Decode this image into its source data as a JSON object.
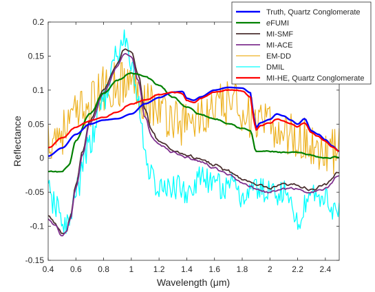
{
  "chart_data": {
    "type": "line",
    "title": "",
    "xlabel": "Wavelength (μm)",
    "ylabel": "Reflectance",
    "xlim": [
      0.4,
      2.5
    ],
    "ylim": [
      -0.15,
      0.2
    ],
    "xticks": [
      0.4,
      0.6,
      0.8,
      1,
      1.2,
      1.4,
      1.6,
      1.8,
      2,
      2.2,
      2.4
    ],
    "xtick_labels": [
      "0.4",
      "0.6",
      "0.8",
      "1",
      "1.2",
      "1.4",
      "1.6",
      "1.8",
      "2",
      "2.2",
      "2.4"
    ],
    "yticks": [
      -0.15,
      -0.1,
      -0.05,
      0,
      0.05,
      0.1,
      0.15,
      0.2
    ],
    "ytick_labels": [
      "-0.15",
      "-0.1",
      "-0.05",
      "0",
      "0.05",
      "0.1",
      "0.15",
      "0.2"
    ],
    "grid": false,
    "legend_position": "top-right",
    "series": [
      {
        "name": "Truth, Quartz Conglomerate",
        "color": "#0000ff",
        "width": 2.4,
        "noise": 0,
        "points": [
          [
            0.4,
            0.003
          ],
          [
            0.5,
            0.015
          ],
          [
            0.6,
            0.035
          ],
          [
            0.7,
            0.05
          ],
          [
            0.8,
            0.056
          ],
          [
            0.9,
            0.058
          ],
          [
            1.0,
            0.065
          ],
          [
            1.1,
            0.08
          ],
          [
            1.2,
            0.089
          ],
          [
            1.3,
            0.097
          ],
          [
            1.37,
            0.098
          ],
          [
            1.4,
            0.088
          ],
          [
            1.45,
            0.085
          ],
          [
            1.5,
            0.09
          ],
          [
            1.6,
            0.1
          ],
          [
            1.7,
            0.104
          ],
          [
            1.8,
            0.103
          ],
          [
            1.86,
            0.096
          ],
          [
            1.88,
            0.065
          ],
          [
            1.9,
            0.045
          ],
          [
            1.93,
            0.052
          ],
          [
            2.0,
            0.057
          ],
          [
            2.05,
            0.065
          ],
          [
            2.1,
            0.062
          ],
          [
            2.15,
            0.056
          ],
          [
            2.2,
            0.05
          ],
          [
            2.25,
            0.058
          ],
          [
            2.3,
            0.04
          ],
          [
            2.35,
            0.035
          ],
          [
            2.4,
            0.027
          ],
          [
            2.45,
            0.018
          ],
          [
            2.5,
            0.01
          ]
        ]
      },
      {
        "name": "eFUMI",
        "color": "#008000",
        "width": 2.2,
        "noise": 0.002,
        "points": [
          [
            0.4,
            -0.02
          ],
          [
            0.5,
            -0.02
          ],
          [
            0.55,
            -0.01
          ],
          [
            0.6,
            0.025
          ],
          [
            0.7,
            0.065
          ],
          [
            0.8,
            0.095
          ],
          [
            0.9,
            0.115
          ],
          [
            1.0,
            0.125
          ],
          [
            1.1,
            0.12
          ],
          [
            1.2,
            0.107
          ],
          [
            1.3,
            0.09
          ],
          [
            1.4,
            0.075
          ],
          [
            1.5,
            0.064
          ],
          [
            1.6,
            0.058
          ],
          [
            1.7,
            0.052
          ],
          [
            1.8,
            0.044
          ],
          [
            1.86,
            0.04
          ],
          [
            1.9,
            0.01
          ],
          [
            2.0,
            0.01
          ],
          [
            2.1,
            0.008
          ],
          [
            2.2,
            0.008
          ],
          [
            2.3,
            0.004
          ],
          [
            2.4,
            0.0
          ],
          [
            2.5,
            0.002
          ]
        ]
      },
      {
        "name": "MI-SMF",
        "color": "#4a2f2f",
        "width": 1.8,
        "noise": 0.005,
        "points": [
          [
            0.4,
            -0.085
          ],
          [
            0.45,
            -0.095
          ],
          [
            0.5,
            -0.11
          ],
          [
            0.53,
            -0.11
          ],
          [
            0.56,
            -0.085
          ],
          [
            0.6,
            -0.04
          ],
          [
            0.65,
            0.01
          ],
          [
            0.7,
            0.055
          ],
          [
            0.8,
            0.1
          ],
          [
            0.9,
            0.14
          ],
          [
            0.95,
            0.16
          ],
          [
            1.0,
            0.155
          ],
          [
            1.05,
            0.12
          ],
          [
            1.1,
            0.07
          ],
          [
            1.15,
            0.04
          ],
          [
            1.2,
            0.025
          ],
          [
            1.3,
            0.012
          ],
          [
            1.4,
            0.005
          ],
          [
            1.5,
            -0.002
          ],
          [
            1.6,
            -0.01
          ],
          [
            1.7,
            -0.02
          ],
          [
            1.8,
            -0.03
          ],
          [
            1.9,
            -0.04
          ],
          [
            2.0,
            -0.045
          ],
          [
            2.1,
            -0.04
          ],
          [
            2.2,
            -0.04
          ],
          [
            2.3,
            -0.045
          ],
          [
            2.4,
            -0.04
          ],
          [
            2.5,
            -0.02
          ]
        ]
      },
      {
        "name": "MI-ACE",
        "color": "#7e2f8e",
        "width": 1.8,
        "noise": 0.004,
        "points": [
          [
            0.4,
            -0.09
          ],
          [
            0.45,
            -0.1
          ],
          [
            0.5,
            -0.115
          ],
          [
            0.53,
            -0.11
          ],
          [
            0.56,
            -0.09
          ],
          [
            0.6,
            -0.045
          ],
          [
            0.65,
            0.005
          ],
          [
            0.7,
            0.05
          ],
          [
            0.8,
            0.095
          ],
          [
            0.9,
            0.135
          ],
          [
            0.95,
            0.155
          ],
          [
            1.0,
            0.15
          ],
          [
            1.05,
            0.115
          ],
          [
            1.1,
            0.06
          ],
          [
            1.15,
            0.03
          ],
          [
            1.2,
            0.02
          ],
          [
            1.3,
            0.008
          ],
          [
            1.4,
            0.0
          ],
          [
            1.5,
            -0.005
          ],
          [
            1.6,
            -0.015
          ],
          [
            1.7,
            -0.025
          ],
          [
            1.8,
            -0.035
          ],
          [
            1.9,
            -0.045
          ],
          [
            2.0,
            -0.05
          ],
          [
            2.1,
            -0.045
          ],
          [
            2.2,
            -0.045
          ],
          [
            2.3,
            -0.05
          ],
          [
            2.4,
            -0.045
          ],
          [
            2.5,
            -0.025
          ]
        ]
      },
      {
        "name": "EM-DD",
        "color": "#edb120",
        "width": 1.2,
        "noise": 0.035,
        "points": [
          [
            0.4,
            0.03
          ],
          [
            0.5,
            0.04
          ],
          [
            0.6,
            0.06
          ],
          [
            0.7,
            0.08
          ],
          [
            0.8,
            0.1
          ],
          [
            0.9,
            0.11
          ],
          [
            1.0,
            0.11
          ],
          [
            1.1,
            0.09
          ],
          [
            1.2,
            0.07
          ],
          [
            1.3,
            0.06
          ],
          [
            1.4,
            0.05
          ],
          [
            1.5,
            0.06
          ],
          [
            1.6,
            0.07
          ],
          [
            1.7,
            0.08
          ],
          [
            1.8,
            0.075
          ],
          [
            1.9,
            0.05
          ],
          [
            2.0,
            0.045
          ],
          [
            2.1,
            0.04
          ],
          [
            2.2,
            0.03
          ],
          [
            2.3,
            0.02
          ],
          [
            2.4,
            0.01
          ],
          [
            2.5,
            0.01
          ]
        ]
      },
      {
        "name": "DMIL",
        "color": "#00ffff",
        "width": 1.3,
        "noise": 0.02,
        "points": [
          [
            0.4,
            -0.05
          ],
          [
            0.45,
            -0.07
          ],
          [
            0.5,
            -0.09
          ],
          [
            0.55,
            -0.1
          ],
          [
            0.6,
            -0.05
          ],
          [
            0.7,
            0.02
          ],
          [
            0.8,
            0.09
          ],
          [
            0.9,
            0.15
          ],
          [
            0.95,
            0.175
          ],
          [
            1.0,
            0.14
          ],
          [
            1.05,
            0.08
          ],
          [
            1.1,
            0.01
          ],
          [
            1.15,
            -0.03
          ],
          [
            1.2,
            -0.045
          ],
          [
            1.25,
            -0.05
          ],
          [
            1.3,
            -0.04
          ],
          [
            1.4,
            -0.05
          ],
          [
            1.5,
            -0.03
          ],
          [
            1.6,
            -0.04
          ],
          [
            1.7,
            -0.04
          ],
          [
            1.8,
            -0.055
          ],
          [
            1.9,
            -0.045
          ],
          [
            2.0,
            -0.05
          ],
          [
            2.1,
            -0.05
          ],
          [
            2.2,
            -0.09
          ],
          [
            2.3,
            -0.05
          ],
          [
            2.4,
            -0.06
          ],
          [
            2.5,
            -0.08
          ]
        ]
      },
      {
        "name": "MI-HE, Quartz Conglomerate",
        "color": "#ff0000",
        "width": 2.2,
        "noise": 0.0015,
        "points": [
          [
            0.4,
            0.015
          ],
          [
            0.5,
            0.03
          ],
          [
            0.6,
            0.045
          ],
          [
            0.7,
            0.055
          ],
          [
            0.8,
            0.06
          ],
          [
            0.9,
            0.068
          ],
          [
            1.0,
            0.08
          ],
          [
            1.1,
            0.085
          ],
          [
            1.2,
            0.093
          ],
          [
            1.3,
            0.097
          ],
          [
            1.37,
            0.095
          ],
          [
            1.4,
            0.085
          ],
          [
            1.45,
            0.082
          ],
          [
            1.5,
            0.088
          ],
          [
            1.6,
            0.097
          ],
          [
            1.7,
            0.1
          ],
          [
            1.8,
            0.099
          ],
          [
            1.86,
            0.09
          ],
          [
            1.88,
            0.06
          ],
          [
            1.9,
            0.042
          ],
          [
            1.93,
            0.048
          ],
          [
            2.0,
            0.052
          ],
          [
            2.05,
            0.058
          ],
          [
            2.1,
            0.055
          ],
          [
            2.15,
            0.05
          ],
          [
            2.2,
            0.046
          ],
          [
            2.25,
            0.052
          ],
          [
            2.3,
            0.037
          ],
          [
            2.35,
            0.032
          ],
          [
            2.4,
            0.025
          ],
          [
            2.45,
            0.016
          ],
          [
            2.5,
            0.01
          ]
        ]
      }
    ]
  }
}
